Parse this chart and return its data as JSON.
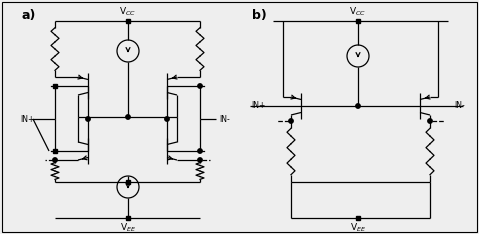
{
  "bg_color": "#eeeeee",
  "line_color": "#000000",
  "figsize": [
    4.79,
    2.34
  ],
  "dpi": 100,
  "a_label": "a)",
  "b_label": "b)",
  "vcc": "V$_{CC}$",
  "vee": "V$_{EE}$",
  "in_plus": "IN+",
  "in_minus": "IN-"
}
